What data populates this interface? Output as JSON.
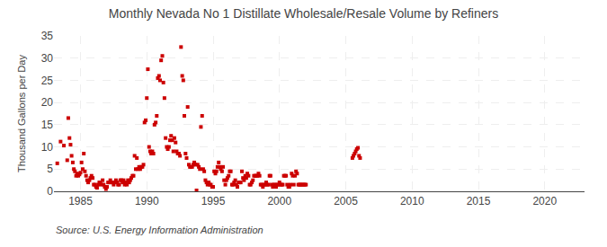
{
  "chart_data": {
    "type": "scatter",
    "title": "Monthly Nevada No 1 Distillate Wholesale/Resale Volume by Refiners",
    "ylabel": "Thousand Gallons per Day",
    "annotations": [
      "Source: U.S. Energy Information Administration"
    ],
    "color": "#cc0000",
    "marker": "square",
    "grid": true,
    "xlim": [
      1983.0,
      2023.0
    ],
    "ylim": [
      0,
      35
    ],
    "xticks": [
      1985,
      1990,
      1995,
      2000,
      2005,
      2010,
      2015,
      2020
    ],
    "yticks": [
      0,
      5,
      10,
      15,
      20,
      25,
      30,
      35
    ],
    "x": [
      1983.25,
      1983.5,
      1983.75,
      1984.0,
      1984.08,
      1984.17,
      1984.25,
      1984.33,
      1984.42,
      1984.5,
      1984.58,
      1984.67,
      1984.75,
      1984.83,
      1984.92,
      1985.0,
      1985.08,
      1985.17,
      1985.25,
      1985.33,
      1985.42,
      1985.5,
      1985.58,
      1985.67,
      1985.75,
      1985.83,
      1985.92,
      1986.0,
      1986.08,
      1986.17,
      1986.25,
      1986.33,
      1986.42,
      1986.5,
      1986.58,
      1986.67,
      1986.75,
      1986.83,
      1986.92,
      1987.0,
      1987.08,
      1987.17,
      1987.25,
      1987.33,
      1987.42,
      1987.5,
      1987.58,
      1987.67,
      1987.75,
      1987.83,
      1987.92,
      1988.0,
      1988.08,
      1988.17,
      1988.25,
      1988.33,
      1988.42,
      1988.5,
      1988.58,
      1988.67,
      1988.75,
      1988.83,
      1988.92,
      1989.0,
      1989.08,
      1989.17,
      1989.25,
      1989.33,
      1989.42,
      1989.5,
      1989.58,
      1989.67,
      1989.75,
      1989.83,
      1989.92,
      1990.0,
      1990.08,
      1990.17,
      1990.25,
      1990.33,
      1990.42,
      1990.5,
      1990.58,
      1990.67,
      1990.75,
      1990.83,
      1990.92,
      1991.0,
      1991.08,
      1991.17,
      1991.25,
      1991.33,
      1991.42,
      1991.5,
      1991.58,
      1991.67,
      1991.75,
      1991.83,
      1991.92,
      1992.0,
      1992.08,
      1992.17,
      1992.25,
      1992.33,
      1992.42,
      1992.5,
      1992.58,
      1992.67,
      1992.75,
      1992.83,
      1992.92,
      1993.0,
      1993.08,
      1993.17,
      1993.25,
      1993.33,
      1993.42,
      1993.5,
      1993.58,
      1993.67,
      1993.75,
      1993.83,
      1993.92,
      1994.0,
      1994.08,
      1994.17,
      1994.25,
      1994.33,
      1994.42,
      1994.5,
      1994.58,
      1994.67,
      1994.75,
      1994.83,
      1994.92,
      1995.0,
      1995.08,
      1995.17,
      1995.25,
      1995.33,
      1995.42,
      1995.5,
      1995.58,
      1995.67,
      1995.75,
      1995.83,
      1995.92,
      1996.0,
      1996.08,
      1996.17,
      1996.25,
      1996.33,
      1996.42,
      1996.5,
      1996.58,
      1996.67,
      1996.75,
      1996.83,
      1996.92,
      1997.0,
      1997.08,
      1997.17,
      1997.25,
      1997.33,
      1997.42,
      1997.5,
      1997.58,
      1997.67,
      1997.75,
      1997.83,
      1997.92,
      1998.0,
      1998.08,
      1998.17,
      1998.25,
      1998.33,
      1998.42,
      1998.5,
      1998.58,
      1998.67,
      1998.75,
      1998.83,
      1998.92,
      1999.0,
      1999.08,
      1999.17,
      1999.25,
      1999.33,
      1999.42,
      1999.5,
      1999.58,
      1999.67,
      1999.75,
      1999.83,
      1999.92,
      2000.0,
      2000.08,
      2000.17,
      2000.25,
      2000.33,
      2000.42,
      2000.5,
      2000.58,
      2000.67,
      2000.75,
      2000.83,
      2000.92,
      2001.0,
      2001.08,
      2001.17,
      2001.25,
      2001.33,
      2001.42,
      2001.5,
      2001.58,
      2001.67,
      2001.75,
      2001.83,
      2001.92,
      2002.0,
      2005.5,
      2005.58,
      2005.67,
      2005.75,
      2005.83,
      2005.92,
      2006.0,
      2006.08
    ],
    "values": [
      6.3,
      11.2,
      10.3,
      7.0,
      16.5,
      12.0,
      10.5,
      8.0,
      6.5,
      5.0,
      4.5,
      3.5,
      4.0,
      3.5,
      3.8,
      4.2,
      6.5,
      5.0,
      8.5,
      4.5,
      3.5,
      2.5,
      2.0,
      2.5,
      3.0,
      3.5,
      3.0,
      1.5,
      1.5,
      1.0,
      0.8,
      1.5,
      2.0,
      2.0,
      1.5,
      2.5,
      1.5,
      1.0,
      0.5,
      1.0,
      2.0,
      2.0,
      2.5,
      2.0,
      2.0,
      1.5,
      2.0,
      2.5,
      2.0,
      1.5,
      1.5,
      2.5,
      2.5,
      2.0,
      2.5,
      1.5,
      2.0,
      1.5,
      2.5,
      2.0,
      2.5,
      3.0,
      3.5,
      3.5,
      8.0,
      5.0,
      7.5,
      5.0,
      5.5,
      5.0,
      5.5,
      5.5,
      6.0,
      15.5,
      16.0,
      21.0,
      27.5,
      10.0,
      9.0,
      8.5,
      9.0,
      8.5,
      15.0,
      15.5,
      17.0,
      25.5,
      26.0,
      25.0,
      29.5,
      30.5,
      24.5,
      21.0,
      12.0,
      10.0,
      9.5,
      10.0,
      11.5,
      12.5,
      11.5,
      9.0,
      12.0,
      11.0,
      9.0,
      8.5,
      8.5,
      8.0,
      32.5,
      26.0,
      25.0,
      17.0,
      8.5,
      7.5,
      19.0,
      6.0,
      5.5,
      5.5,
      5.5,
      6.0,
      6.5,
      6.0,
      0.2,
      6.0,
      5.5,
      5.0,
      14.5,
      17.0,
      5.0,
      4.5,
      2.5,
      2.0,
      1.5,
      2.0,
      1.5,
      1.5,
      1.0,
      1.0,
      4.5,
      4.0,
      4.5,
      5.5,
      6.5,
      5.5,
      5.0,
      4.5,
      5.5,
      2.5,
      1.5,
      2.5,
      3.0,
      3.5,
      4.5,
      4.5,
      1.5,
      1.5,
      2.0,
      2.5,
      1.5,
      1.0,
      2.0,
      2.0,
      2.0,
      4.5,
      3.0,
      2.5,
      3.5,
      3.0,
      4.0,
      3.5,
      1.5,
      1.5,
      2.0,
      2.5,
      3.5,
      3.5,
      3.5,
      3.5,
      4.0,
      3.5,
      1.5,
      1.5,
      1.0,
      1.5,
      1.5,
      2.0,
      1.5,
      1.5,
      3.5,
      3.5,
      1.5,
      1.0,
      1.5,
      1.5,
      1.0,
      1.5,
      1.5,
      2.0,
      1.5,
      1.5,
      1.5,
      3.5,
      3.5,
      3.5,
      1.5,
      1.0,
      1.0,
      1.5,
      4.0,
      3.5,
      1.5,
      3.5,
      4.5,
      4.0,
      1.5,
      1.5,
      1.5,
      1.5,
      1.5,
      1.5,
      1.5,
      1.5,
      7.5,
      8.0,
      8.5,
      9.0,
      9.5,
      9.8,
      8.0,
      7.5
    ]
  }
}
